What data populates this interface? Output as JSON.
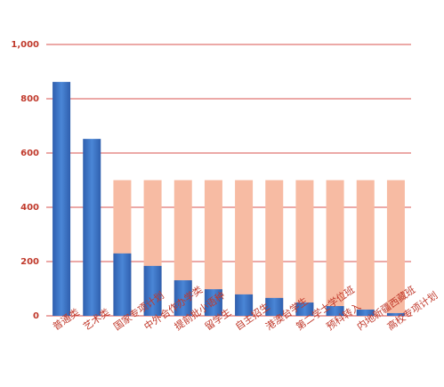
{
  "chart_data": {
    "type": "bar",
    "categories": [
      "普通类",
      "艺术类",
      "国家专项计划",
      "中外合作办学类",
      "提前批小语种",
      "留学生",
      "自主招生",
      "港澳台学生",
      "第二学士学位班",
      "预科转入",
      "内地新疆西藏班",
      "高校专项计划"
    ],
    "series": [
      {
        "color": "#f7bba3",
        "values": [
          null,
          null,
          500,
          500,
          500,
          500,
          500,
          500,
          500,
          500,
          500,
          500
        ]
      },
      {
        "color": "#3a6fc2",
        "values": [
          862,
          652,
          230,
          184,
          131,
          98,
          79,
          66,
          49,
          36,
          23,
          10
        ]
      }
    ],
    "ylim": [
      0,
      1000
    ],
    "yticks": [
      0,
      200,
      400,
      600,
      800,
      {
        "value": 1000,
        "label": "1,000"
      }
    ],
    "grid": true,
    "grid_color": "#d9534f"
  }
}
